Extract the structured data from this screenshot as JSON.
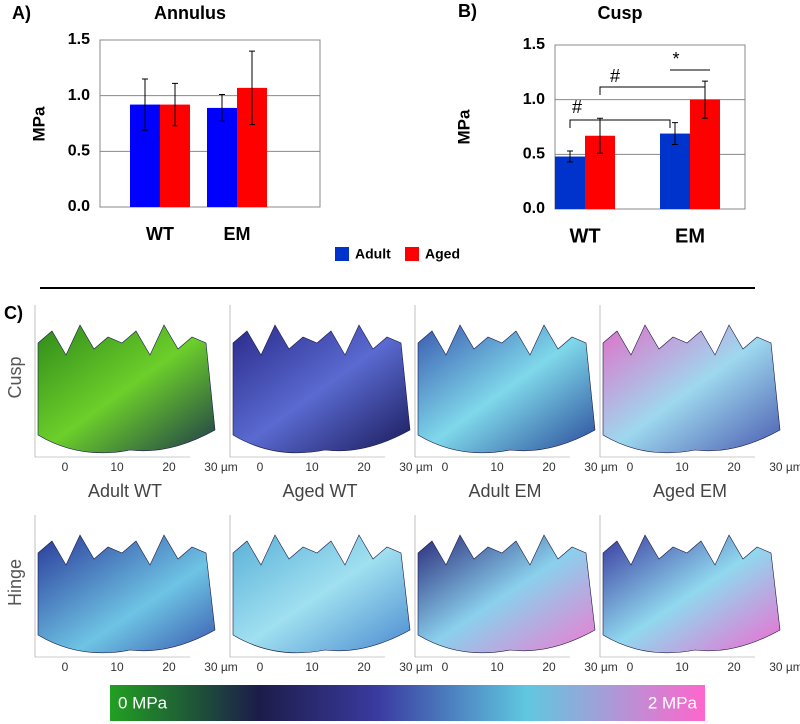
{
  "chart_data": [
    {
      "type": "bar",
      "panel_label": "A)",
      "title": "Annulus",
      "y_label": "MPa",
      "categories": [
        "WT",
        "EM"
      ],
      "series": [
        {
          "color": "#0000ff",
          "values": [
            0.92,
            0.89
          ],
          "errors": [
            0.23,
            0.12
          ]
        },
        {
          "color": "#ff0000",
          "values": [
            0.92,
            1.07
          ],
          "errors": [
            0.19,
            0.33
          ]
        }
      ],
      "ylim": [
        0,
        1.5
      ],
      "yticks": [
        {
          "value": 0,
          "label": "0.0"
        },
        {
          "value": 0.5,
          "label": "0.5"
        },
        {
          "value": 1,
          "label": "1.0"
        },
        {
          "value": 1.5,
          "label": "1.5"
        }
      ],
      "grid": true
    },
    {
      "type": "bar",
      "panel_label": "B)",
      "title": "Cusp",
      "y_label": "MPa",
      "categories": [
        "WT",
        "EM"
      ],
      "series": [
        {
          "name": "Adult",
          "color": "#0033cc",
          "values": [
            0.48,
            0.69
          ],
          "errors": [
            0.05,
            0.1
          ]
        },
        {
          "name": "Aged",
          "color": "#ff0000",
          "values": [
            0.67,
            1.0
          ],
          "errors": [
            0.16,
            0.17
          ]
        }
      ],
      "ylim": [
        0,
        1.5
      ],
      "yticks": [
        {
          "value": 0,
          "label": "0.0"
        },
        {
          "value": 0.5,
          "label": "0.5"
        },
        {
          "value": 1,
          "label": "1.0"
        },
        {
          "value": 1.5,
          "label": "1.5"
        }
      ],
      "grid": true,
      "annotations": [
        "#",
        "#",
        "*"
      ]
    }
  ],
  "panel_c": {
    "panel_label": "C)",
    "rows": [
      "Cusp",
      "Hinge"
    ],
    "columns": [
      "Adult WT",
      "Aged WT",
      "Adult EM",
      "Aged EM"
    ],
    "axis_ticks": [
      "0",
      "10",
      "20",
      "30 µm"
    ],
    "colorbar": {
      "min_label": "0 MPa",
      "max_label": "2 MPa"
    }
  }
}
